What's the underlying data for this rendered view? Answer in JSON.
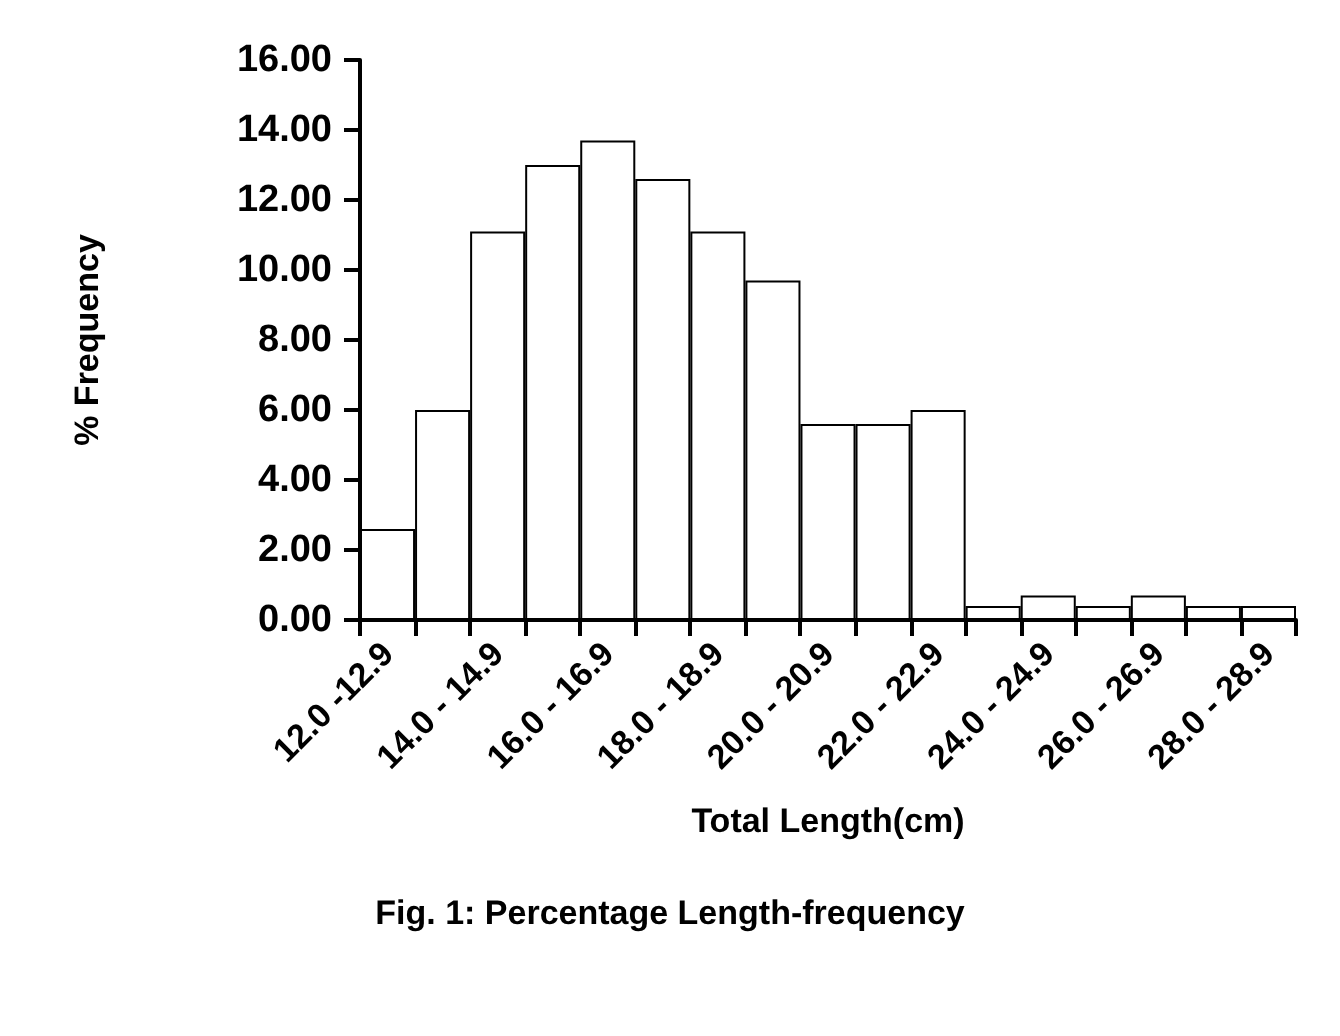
{
  "chart_data": {
    "type": "bar",
    "title": "Fig. 1: Percentage Length-frequency",
    "xlabel": "Total Length(cm)",
    "ylabel": "% Frequency",
    "categories": [
      "12.0 -12.9",
      null,
      "14.0 - 14.9",
      null,
      "16.0 - 16.9",
      null,
      "18.0 - 18.9",
      null,
      "20.0 - 20.9",
      null,
      "22.0 - 22.9",
      null,
      "24.0 - 24.9",
      null,
      "26.0 - 26.9",
      null,
      "28.0 - 28.9"
    ],
    "values": [
      2.6,
      6.0,
      11.1,
      13.0,
      13.7,
      12.6,
      11.1,
      9.7,
      5.6,
      5.6,
      6.0,
      0.4,
      0.7,
      0.4,
      0.7,
      0.4,
      0.4
    ],
    "color": "#ffffff",
    "ylim": [
      0,
      16
    ],
    "yticks": [
      {
        "value": 0,
        "label": "0.00"
      },
      {
        "value": 2,
        "label": "2.00"
      },
      {
        "value": 4,
        "label": "4.00"
      },
      {
        "value": 6,
        "label": "6.00"
      },
      {
        "value": 8,
        "label": "8.00"
      },
      {
        "value": 10,
        "label": "10.00"
      },
      {
        "value": 12,
        "label": "12.00"
      },
      {
        "value": 14,
        "label": "14.00"
      },
      {
        "value": 16,
        "label": "16.00"
      }
    ],
    "grid": false
  }
}
